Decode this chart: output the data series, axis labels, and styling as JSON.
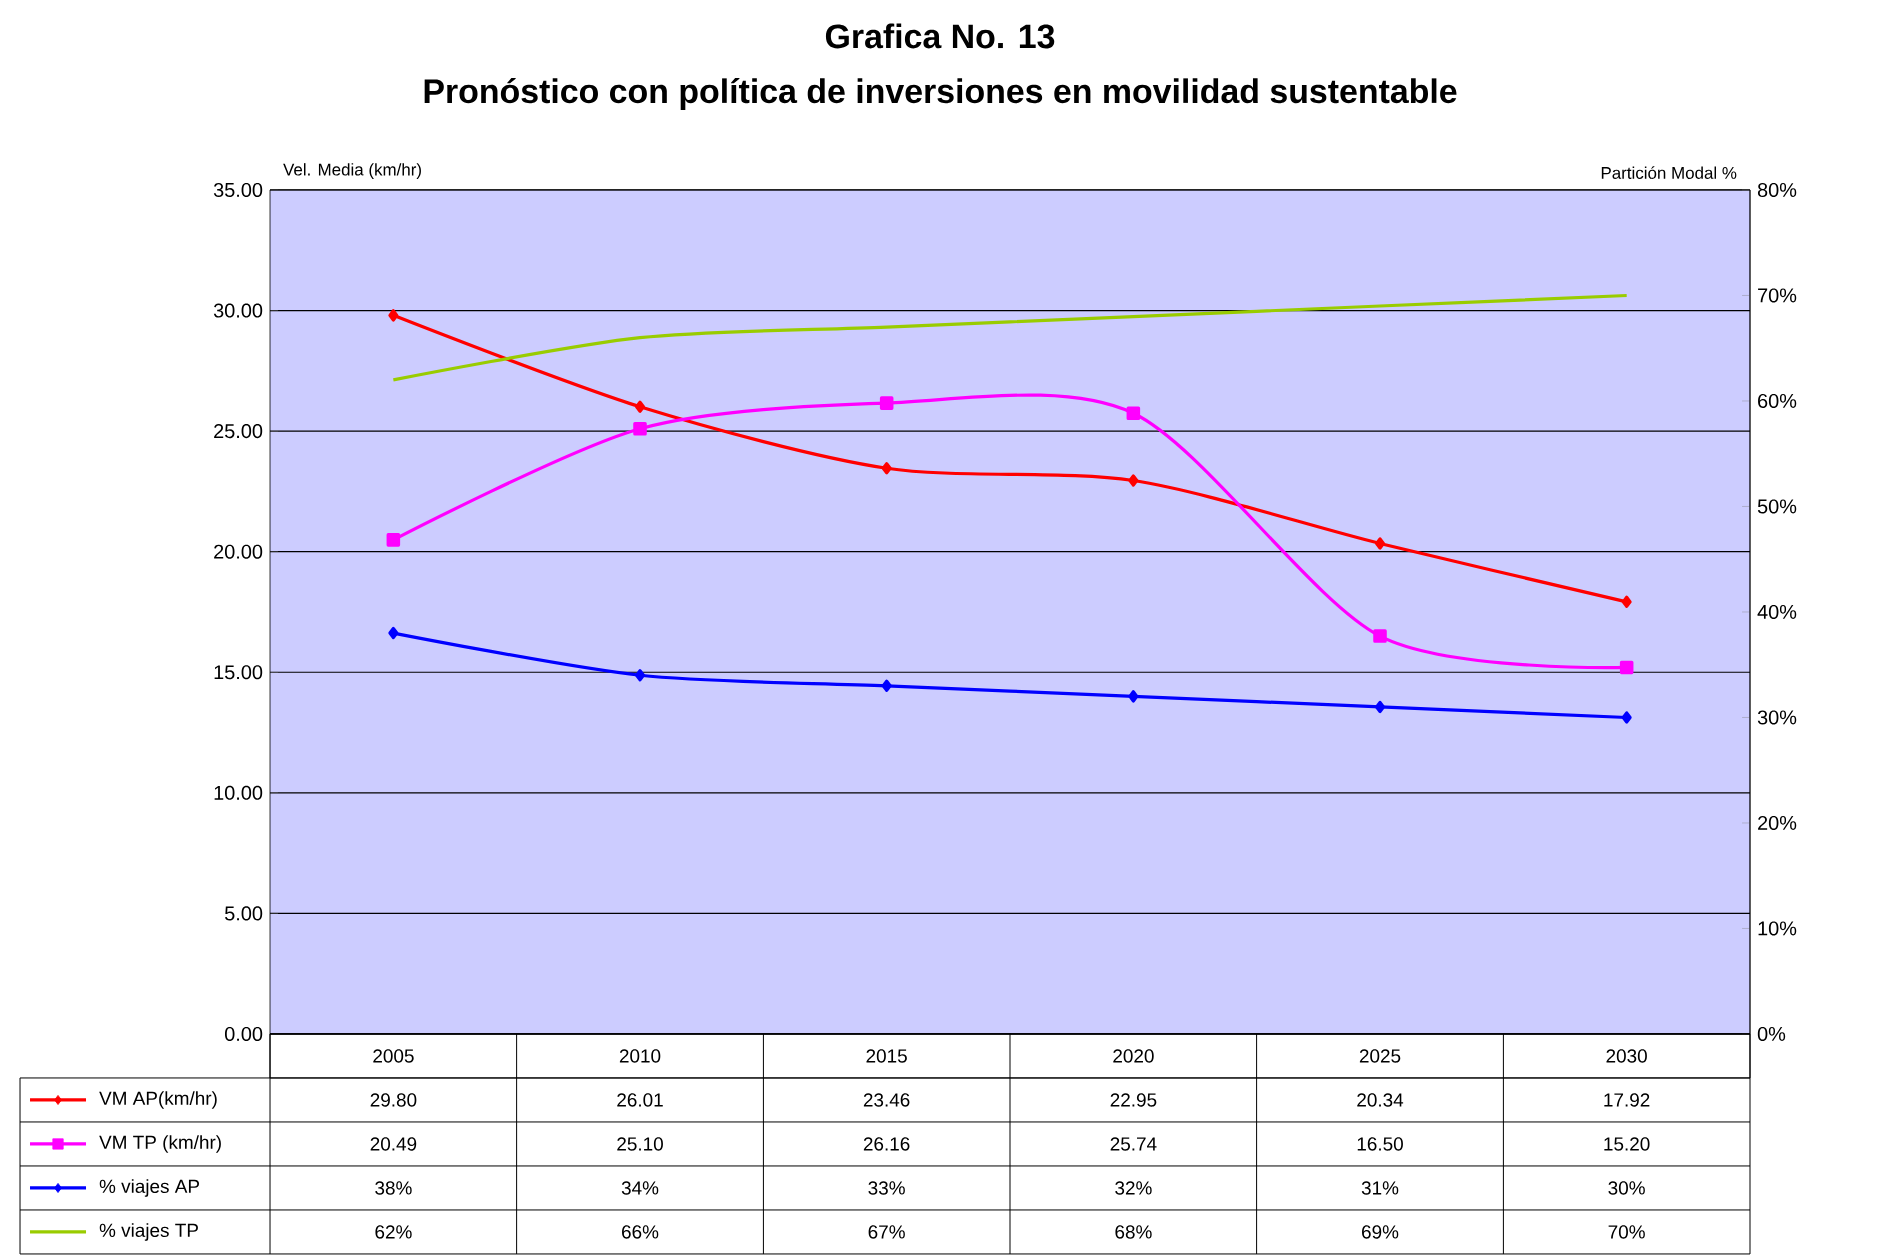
{
  "chart_data": {
    "type": "line",
    "title": "Grafica No. 13",
    "subtitle": "Pronóstico con política de inversiones en movilidad sustentable",
    "ylabel": "Vel. Media  (km/hr)",
    "y2label": "Partición Modal %",
    "categories": [
      "2005",
      "2010",
      "2015",
      "2020",
      "2025",
      "2030"
    ],
    "ylim": [
      0,
      35
    ],
    "yticks": [
      {
        "value": 0,
        "label": "0.00"
      },
      {
        "value": 5,
        "label": "5.00"
      },
      {
        "value": 10,
        "label": "10.00"
      },
      {
        "value": 15,
        "label": "15.00"
      },
      {
        "value": 20,
        "label": "20.00"
      },
      {
        "value": 25,
        "label": "25.00"
      },
      {
        "value": 30,
        "label": "30.00"
      },
      {
        "value": 35,
        "label": "35.00"
      }
    ],
    "y2lim": [
      0,
      80
    ],
    "y2ticks": [
      {
        "value": 0,
        "label": "0%"
      },
      {
        "value": 10,
        "label": "10%"
      },
      {
        "value": 20,
        "label": "20%"
      },
      {
        "value": 30,
        "label": "30%"
      },
      {
        "value": 40,
        "label": "40%"
      },
      {
        "value": 50,
        "label": "50%"
      },
      {
        "value": 60,
        "label": "60%"
      },
      {
        "value": 70,
        "label": "70%"
      },
      {
        "value": 80,
        "label": "80%"
      }
    ],
    "grid": "y",
    "legend": "bottom",
    "series": [
      {
        "name": "VM AP(km/hr)",
        "color": "#ff0000",
        "marker": "diamond",
        "values": [
          29.8,
          26.01,
          23.46,
          22.95,
          20.34,
          17.92
        ],
        "value_labels": [
          "29.80",
          "26.01",
          "23.46",
          "22.95",
          "20.34",
          "17.92"
        ]
      },
      {
        "name": "VM TP (km/hr)",
        "color": "#ff00ff",
        "marker": "square",
        "values": [
          20.49,
          25.1,
          26.16,
          25.74,
          16.5,
          15.2
        ],
        "value_labels": [
          "20.49",
          "25.10",
          "26.16",
          "25.74",
          "16.50",
          "15.20"
        ]
      },
      {
        "name": "% viajes AP",
        "color": "#0000ff",
        "marker": "diamond",
        "axis": "y2",
        "values": [
          38,
          34,
          33,
          32,
          31,
          30
        ],
        "value_labels": [
          "38%",
          "34%",
          "33%",
          "32%",
          "31%",
          "30%"
        ]
      },
      {
        "name": "% viajes TP",
        "color": "#99cc00",
        "marker": "none",
        "axis": "y2",
        "values": [
          62,
          66,
          67,
          68,
          69,
          70
        ],
        "value_labels": [
          "62%",
          "66%",
          "67%",
          "68%",
          "69%",
          "70%"
        ]
      }
    ]
  }
}
